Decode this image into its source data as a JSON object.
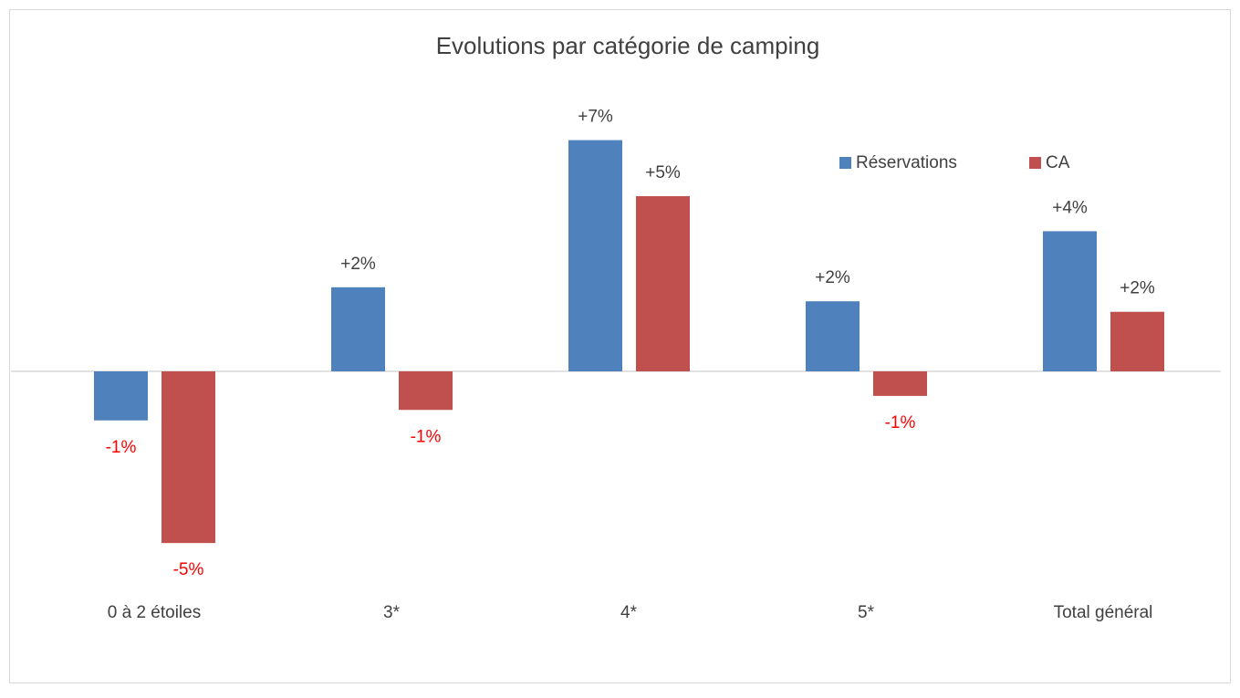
{
  "chart_data": {
    "type": "bar",
    "title": "Evolutions par catégorie de camping",
    "categories": [
      "0 à 2 étoiles",
      "3*",
      "4*",
      "5*",
      "Total général"
    ],
    "series": [
      {
        "name": "Réservations",
        "color": "#4f81bd",
        "values": [
          -1.4,
          2.4,
          6.6,
          2.0,
          4.0
        ],
        "value_labels": [
          "-1%",
          "+2%",
          "+7%",
          "+2%",
          "+4%"
        ]
      },
      {
        "name": "CA",
        "color": "#c0504d",
        "values": [
          -4.9,
          -1.1,
          5.0,
          -0.7,
          1.7
        ],
        "value_labels": [
          "-5%",
          "-1%",
          "+5%",
          "-1%",
          "+2%"
        ]
      }
    ],
    "ylim": [
      -6,
      8
    ],
    "legend": "top-right"
  }
}
